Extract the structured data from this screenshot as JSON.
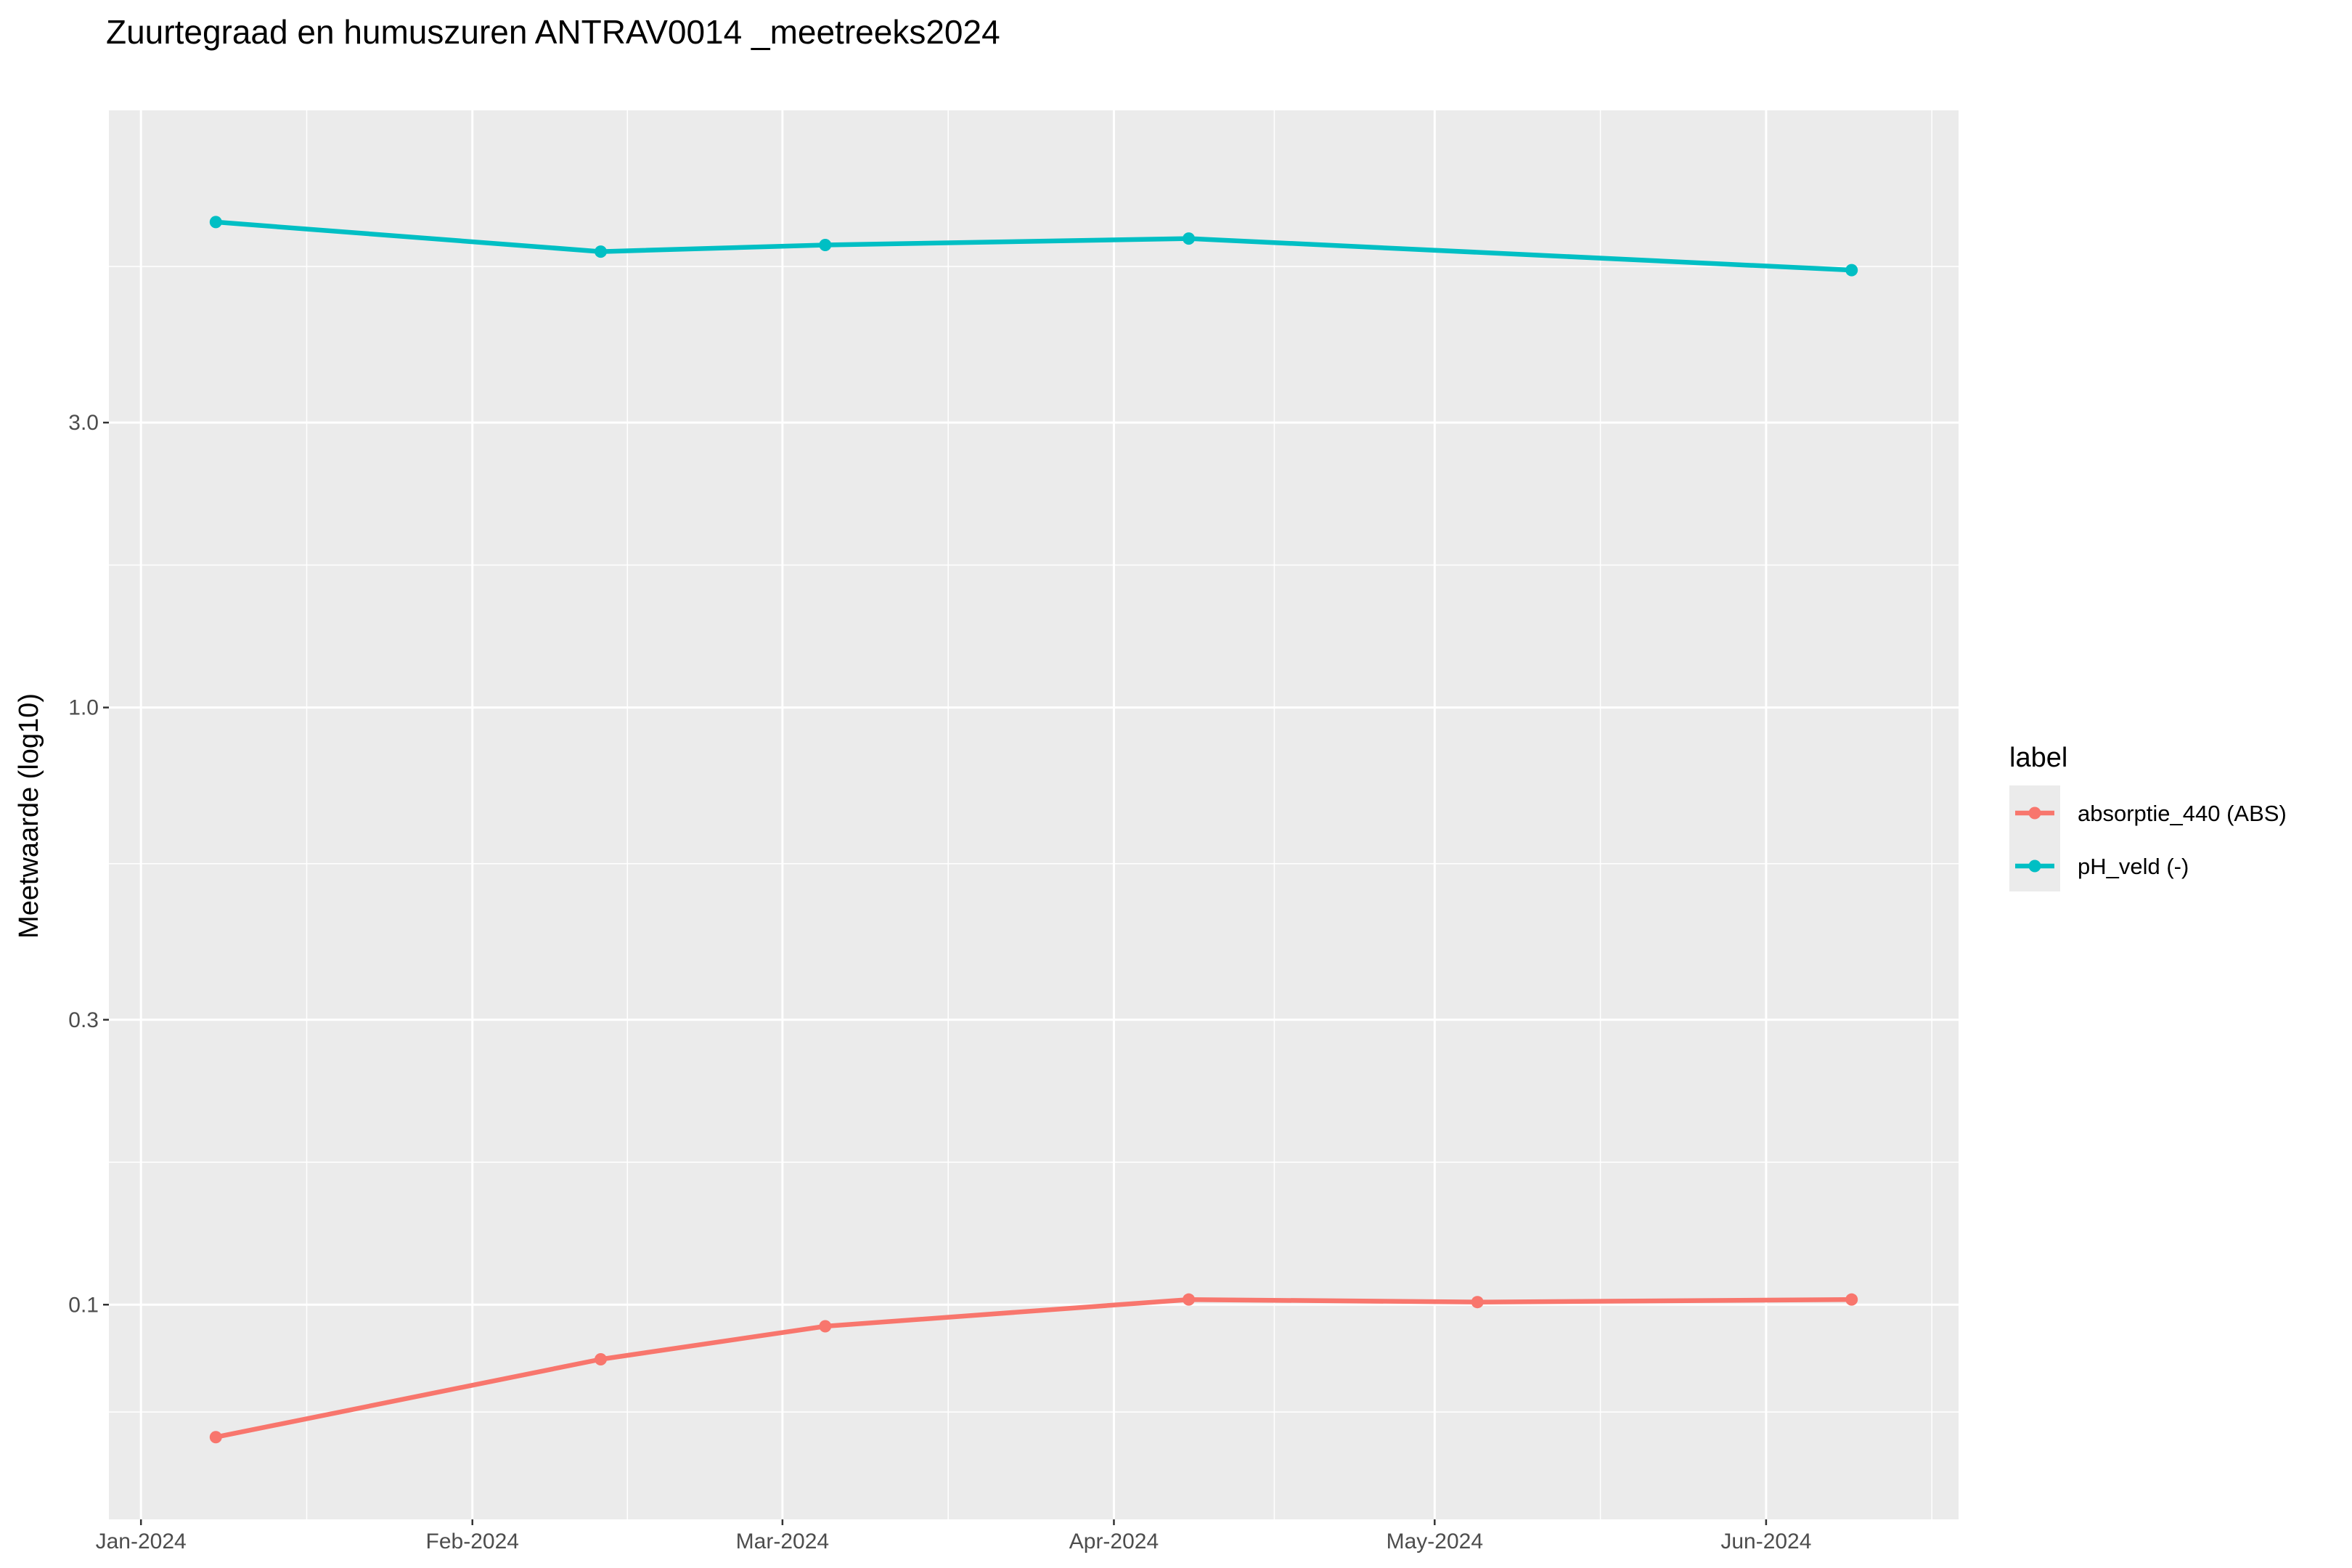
{
  "chart_data": {
    "type": "line",
    "title": "Zuurtegraad en humuszuren ANTRAV0014 _meetreeks2024",
    "xlabel": "",
    "ylabel": "Meetwaarde (log10)",
    "y_scale": "log10",
    "ylim": [
      0.0437,
      10.0
    ],
    "xlim": [
      "2023-12-29",
      "2024-06-19"
    ],
    "y_ticks": [
      {
        "value": 0.1,
        "label": "0.1"
      },
      {
        "value": 0.3,
        "label": "0.3"
      },
      {
        "value": 1.0,
        "label": "1.0"
      },
      {
        "value": 3.0,
        "label": "3.0"
      }
    ],
    "x_ticks": [
      {
        "date": "2024-01-01",
        "label": "Jan-2024"
      },
      {
        "date": "2024-02-01",
        "label": "Feb-2024"
      },
      {
        "date": "2024-03-01",
        "label": "Mar-2024"
      },
      {
        "date": "2024-04-01",
        "label": "Apr-2024"
      },
      {
        "date": "2024-05-01",
        "label": "May-2024"
      },
      {
        "date": "2024-06-01",
        "label": "Jun-2024"
      }
    ],
    "grid": true,
    "legend": {
      "title": "label",
      "position": "right"
    },
    "series": [
      {
        "name": "absorptie_440 (ABS)",
        "color": "#F8766D",
        "points": [
          {
            "x": "2024-01-08",
            "y": 0.06
          },
          {
            "x": "2024-02-13",
            "y": 0.081
          },
          {
            "x": "2024-03-05",
            "y": 0.092
          },
          {
            "x": "2024-04-08",
            "y": 0.102
          },
          {
            "x": "2024-05-05",
            "y": 0.101
          },
          {
            "x": "2024-06-09",
            "y": 0.102
          }
        ]
      },
      {
        "name": "pH_veld (-)",
        "color": "#00BFC4",
        "points": [
          {
            "x": "2024-01-08",
            "y": 6.5
          },
          {
            "x": "2024-02-13",
            "y": 5.8
          },
          {
            "x": "2024-03-05",
            "y": 5.95
          },
          {
            "x": "2024-04-08",
            "y": 6.1
          },
          {
            "x": "2024-06-09",
            "y": 5.4
          }
        ]
      }
    ]
  }
}
